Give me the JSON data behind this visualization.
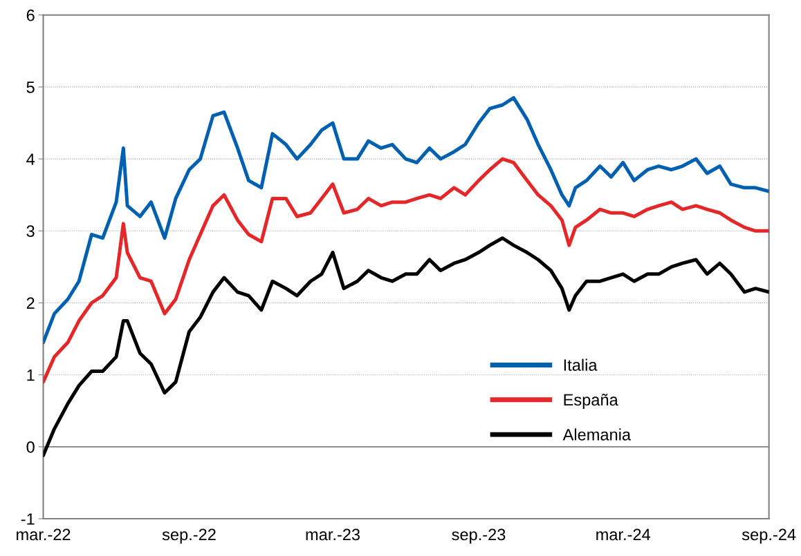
{
  "chart_data": {
    "type": "line",
    "x": [
      "2022-03-01",
      "2022-03-15",
      "2022-04-01",
      "2022-04-15",
      "2022-05-01",
      "2022-05-15",
      "2022-06-01",
      "2022-06-10",
      "2022-06-15",
      "2022-07-01",
      "2022-07-15",
      "2022-08-01",
      "2022-08-15",
      "2022-09-01",
      "2022-09-15",
      "2022-10-01",
      "2022-10-15",
      "2022-11-01",
      "2022-11-15",
      "2022-12-01",
      "2022-12-15",
      "2023-01-01",
      "2023-01-15",
      "2023-02-01",
      "2023-02-15",
      "2023-03-01",
      "2023-03-15",
      "2023-04-01",
      "2023-04-15",
      "2023-05-01",
      "2023-05-15",
      "2023-06-01",
      "2023-06-15",
      "2023-07-01",
      "2023-07-15",
      "2023-08-01",
      "2023-08-15",
      "2023-09-01",
      "2023-09-15",
      "2023-10-01",
      "2023-10-15",
      "2023-11-01",
      "2023-11-15",
      "2023-12-01",
      "2023-12-15",
      "2023-12-24",
      "2024-01-01",
      "2024-01-15",
      "2024-02-01",
      "2024-02-15",
      "2024-03-01",
      "2024-03-15",
      "2024-04-01",
      "2024-04-15",
      "2024-05-01",
      "2024-05-15",
      "2024-06-01",
      "2024-06-15",
      "2024-07-01",
      "2024-07-15",
      "2024-08-01",
      "2024-08-15",
      "2024-09-01"
    ],
    "series": [
      {
        "name": "Italia",
        "color": "#0060b0",
        "values": [
          1.45,
          1.85,
          2.05,
          2.3,
          2.95,
          2.9,
          3.4,
          4.15,
          3.35,
          3.2,
          3.4,
          2.9,
          3.45,
          3.85,
          4.0,
          4.6,
          4.65,
          4.15,
          3.7,
          3.6,
          4.35,
          4.2,
          4.0,
          4.2,
          4.4,
          4.5,
          4.0,
          4.0,
          4.25,
          4.15,
          4.2,
          4.0,
          3.95,
          4.15,
          4.0,
          4.1,
          4.2,
          4.5,
          4.7,
          4.75,
          4.85,
          4.55,
          4.2,
          3.85,
          3.5,
          3.35,
          3.6,
          3.7,
          3.9,
          3.75,
          3.95,
          3.7,
          3.85,
          3.9,
          3.85,
          3.9,
          4.0,
          3.8,
          3.9,
          3.65,
          3.6,
          3.6,
          3.55
        ]
      },
      {
        "name": "España",
        "color": "#e4282a",
        "values": [
          0.9,
          1.25,
          1.45,
          1.75,
          2.0,
          2.1,
          2.35,
          3.1,
          2.7,
          2.35,
          2.3,
          1.85,
          2.05,
          2.6,
          2.95,
          3.35,
          3.5,
          3.15,
          2.95,
          2.85,
          3.45,
          3.45,
          3.2,
          3.25,
          3.45,
          3.65,
          3.25,
          3.3,
          3.45,
          3.35,
          3.4,
          3.4,
          3.45,
          3.5,
          3.45,
          3.6,
          3.5,
          3.7,
          3.85,
          4.0,
          3.95,
          3.7,
          3.5,
          3.35,
          3.15,
          2.8,
          3.05,
          3.15,
          3.3,
          3.25,
          3.25,
          3.2,
          3.3,
          3.35,
          3.4,
          3.3,
          3.35,
          3.3,
          3.25,
          3.15,
          3.05,
          3.0,
          3.0
        ]
      },
      {
        "name": "Alemania",
        "color": "#000000",
        "values": [
          -0.12,
          0.25,
          0.6,
          0.85,
          1.05,
          1.05,
          1.25,
          1.75,
          1.75,
          1.3,
          1.15,
          0.75,
          0.9,
          1.6,
          1.8,
          2.15,
          2.35,
          2.15,
          2.1,
          1.9,
          2.3,
          2.2,
          2.1,
          2.3,
          2.4,
          2.7,
          2.2,
          2.3,
          2.45,
          2.35,
          2.3,
          2.4,
          2.4,
          2.6,
          2.45,
          2.55,
          2.6,
          2.7,
          2.8,
          2.9,
          2.8,
          2.7,
          2.6,
          2.45,
          2.2,
          1.9,
          2.1,
          2.3,
          2.3,
          2.35,
          2.4,
          2.3,
          2.4,
          2.4,
          2.5,
          2.55,
          2.6,
          2.4,
          2.55,
          2.4,
          2.15,
          2.2,
          2.15
        ]
      }
    ],
    "xlim": [
      "2022-03-01",
      "2024-09-01"
    ],
    "xticks": [
      {
        "value": "2022-03-01",
        "label": "mar.-22"
      },
      {
        "value": "2022-09-01",
        "label": "sep.-22"
      },
      {
        "value": "2023-03-01",
        "label": "mar.-23"
      },
      {
        "value": "2023-09-01",
        "label": "sep.-23"
      },
      {
        "value": "2024-03-01",
        "label": "mar.-24"
      },
      {
        "value": "2024-09-01",
        "label": "sep.-24"
      }
    ],
    "ylim": [
      -1,
      6
    ],
    "yticks": [
      -1,
      0,
      1,
      2,
      3,
      4,
      5,
      6
    ],
    "ref_lines": [
      {
        "axis": "y",
        "value": 0,
        "color": "#808080"
      }
    ],
    "grid": "y",
    "legend": "bottom right",
    "marker": "none",
    "line_style": "solid"
  }
}
